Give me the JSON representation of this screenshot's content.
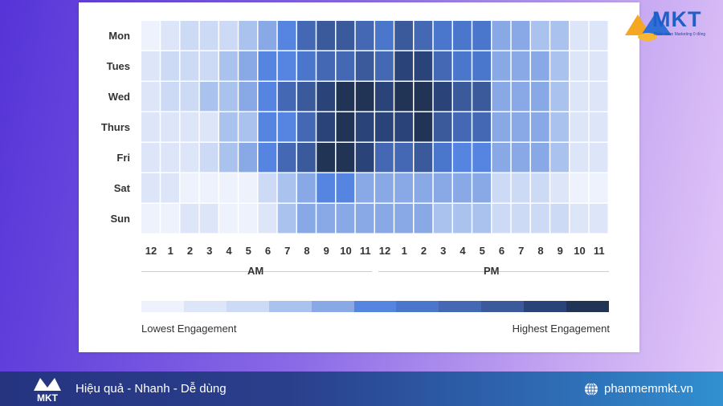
{
  "chart_data": {
    "type": "heatmap",
    "rows": [
      "Mon",
      "Tues",
      "Wed",
      "Thurs",
      "Fri",
      "Sat",
      "Sun"
    ],
    "columns": [
      "12",
      "1",
      "2",
      "3",
      "4",
      "5",
      "6",
      "7",
      "8",
      "9",
      "10",
      "11",
      "12",
      "1",
      "2",
      "3",
      "4",
      "5",
      "6",
      "7",
      "8",
      "9",
      "10",
      "11"
    ],
    "period_labels": [
      "AM",
      "PM"
    ],
    "scale_min_label": "Lowest Engagement",
    "scale_max_label": "Highest Engagement",
    "scale_colors": [
      "#eef2fc",
      "#dde5f8",
      "#ccdaf5",
      "#aac2ee",
      "#88a8e6",
      "#5585e0",
      "#4a76cc",
      "#4468b4",
      "#3a5a9c",
      "#2a4378",
      "#213456"
    ],
    "values": [
      [
        0,
        1,
        2,
        2,
        2,
        3,
        4,
        5,
        7,
        8,
        8,
        7,
        6,
        8,
        7,
        6,
        6,
        6,
        4,
        4,
        3,
        3,
        1,
        1
      ],
      [
        1,
        2,
        2,
        2,
        3,
        4,
        5,
        5,
        6,
        7,
        7,
        8,
        7,
        9,
        9,
        7,
        6,
        6,
        4,
        4,
        4,
        3,
        1,
        1
      ],
      [
        1,
        2,
        2,
        3,
        3,
        4,
        5,
        7,
        8,
        9,
        10,
        10,
        9,
        10,
        10,
        9,
        8,
        8,
        4,
        4,
        4,
        3,
        1,
        1
      ],
      [
        1,
        1,
        1,
        1,
        3,
        3,
        5,
        5,
        7,
        9,
        10,
        9,
        9,
        9,
        10,
        8,
        7,
        7,
        4,
        4,
        4,
        3,
        1,
        1
      ],
      [
        1,
        1,
        1,
        2,
        3,
        4,
        5,
        7,
        8,
        10,
        10,
        9,
        7,
        7,
        8,
        6,
        5,
        5,
        4,
        4,
        4,
        3,
        1,
        1
      ],
      [
        1,
        1,
        0,
        0,
        0,
        0,
        2,
        3,
        4,
        5,
        5,
        4,
        4,
        4,
        4,
        4,
        4,
        4,
        2,
        2,
        2,
        1,
        0,
        0
      ],
      [
        0,
        0,
        1,
        1,
        0,
        0,
        1,
        3,
        4,
        4,
        4,
        4,
        4,
        4,
        4,
        3,
        3,
        3,
        2,
        2,
        2,
        2,
        1,
        1
      ]
    ],
    "value_scale": "level 0 (lowest) to 10 (highest)"
  },
  "brand": {
    "logo_text": "MKT",
    "logo_sub": "Phần mềm Marketing 0 đồng"
  },
  "footer": {
    "tagline": "Hiệu quả - Nhanh - Dễ dùng",
    "website": "phanmemmkt.vn",
    "globe_icon": "globe-icon"
  }
}
